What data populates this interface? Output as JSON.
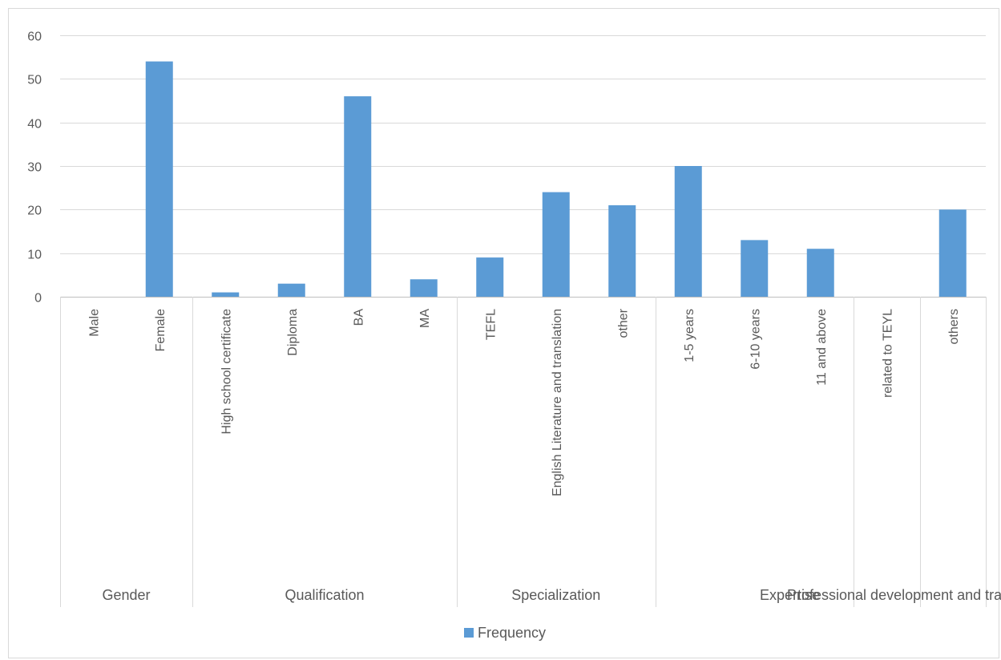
{
  "chart_data": {
    "type": "bar",
    "categories": [
      "Male",
      "Female",
      "High school certificate",
      "Diploma",
      "BA",
      "MA",
      "TEFL",
      "English Literature and translation",
      "other",
      "1-5 years",
      "6-10 years",
      "11 and above",
      "related to TEYL",
      "others"
    ],
    "groups": [
      {
        "label": "Gender",
        "count": 2
      },
      {
        "label": "Qualification",
        "count": 4
      },
      {
        "label": "Specialization",
        "count": 3
      },
      {
        "label": "Expertise",
        "count": 3
      },
      {
        "label": "Professional development and training",
        "count": 2
      }
    ],
    "series": [
      {
        "name": "Frequency",
        "values": [
          0,
          54,
          1,
          3,
          46,
          4,
          9,
          24,
          21,
          30,
          13,
          11,
          0,
          20
        ]
      }
    ],
    "ylim": [
      0,
      60
    ],
    "yticks": [
      "0",
      "10",
      "20",
      "30",
      "40",
      "50",
      "60"
    ],
    "grid": true,
    "legend_position": "bottom",
    "colors": {
      "bar": "#5B9BD5",
      "grid": "#D9D9D9",
      "axis": "#BFBFBF",
      "text": "#595959"
    }
  }
}
